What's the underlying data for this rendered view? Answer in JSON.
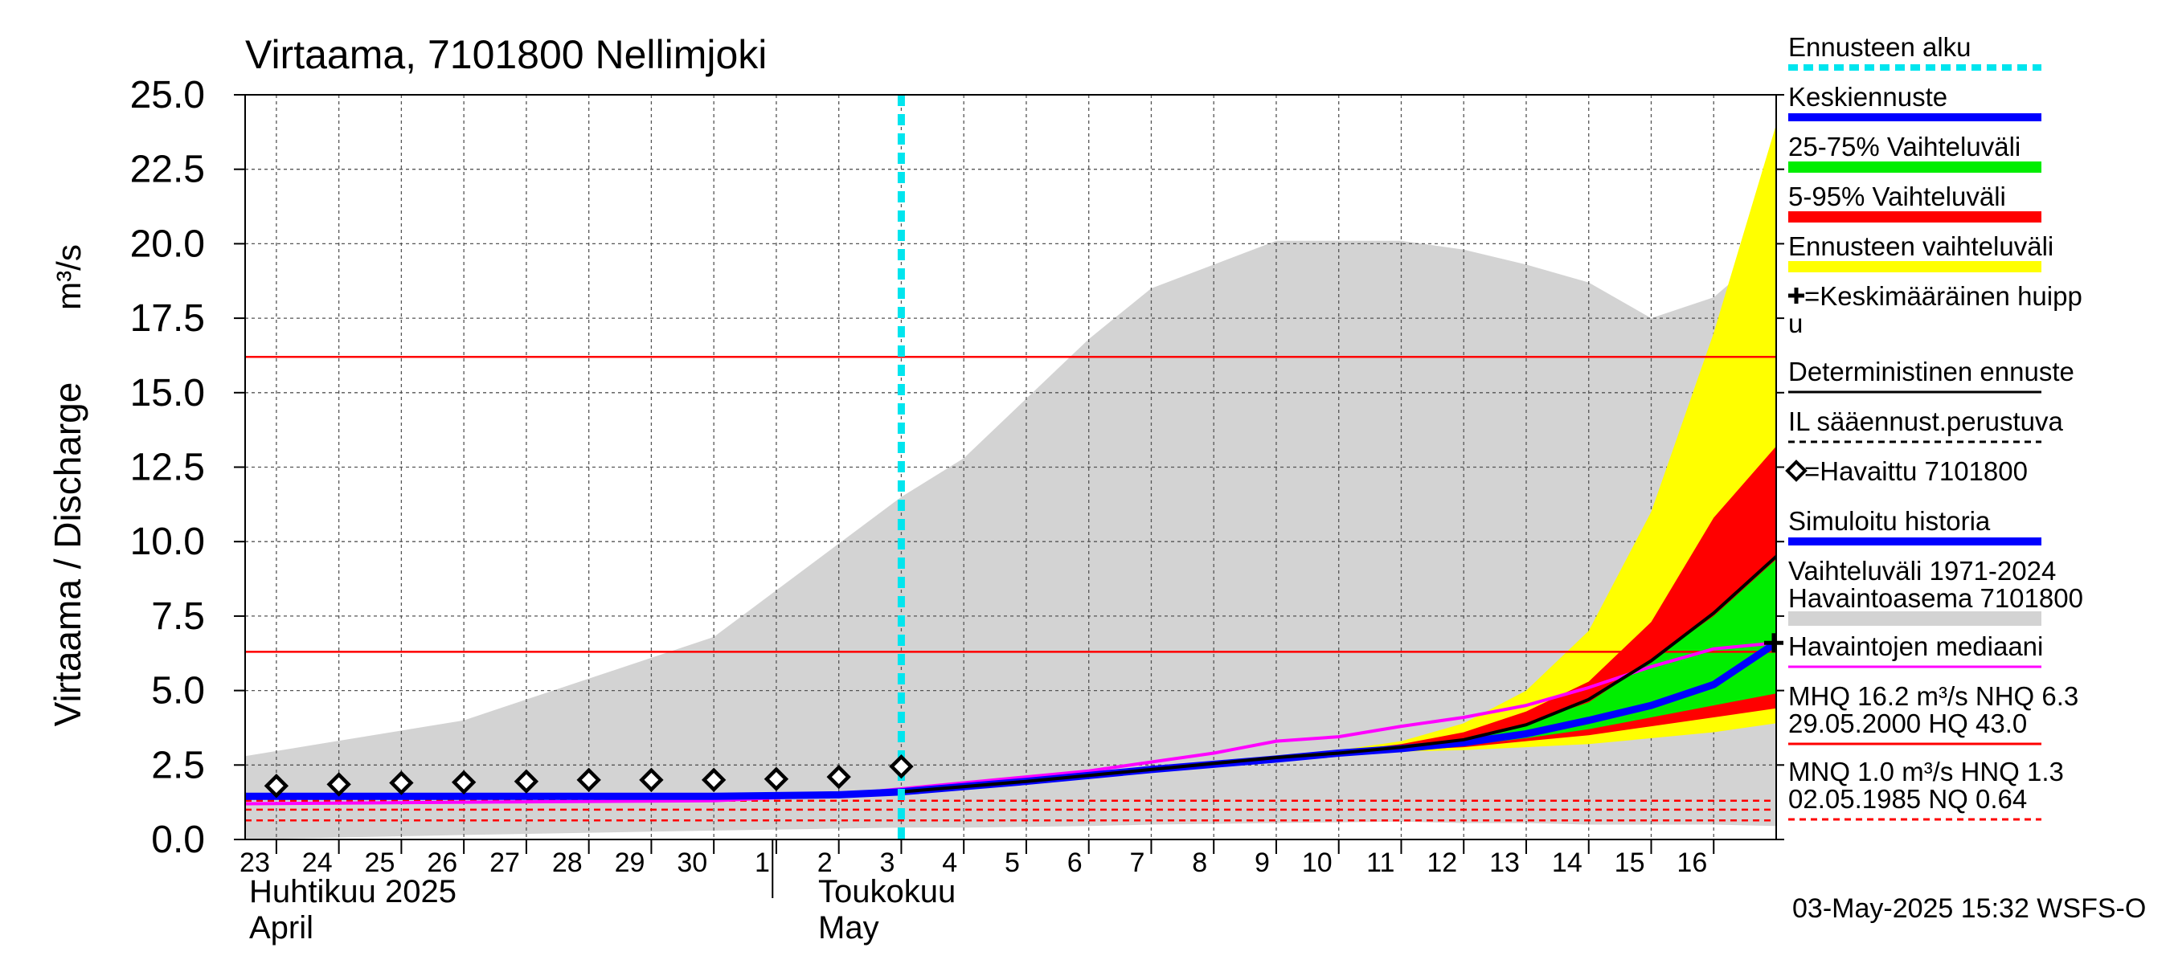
{
  "chart_data": {
    "type": "area",
    "title": "Virtaama, 7101800 Nellimjoki",
    "ylabel": "Virtaama / Discharge",
    "yunit": "m³/s",
    "ylim": [
      0,
      25
    ],
    "yticks": [
      "0.0",
      "2.5",
      "5.0",
      "7.5",
      "10.0",
      "12.5",
      "15.0",
      "17.5",
      "20.0",
      "22.5",
      "25.0"
    ],
    "xlim": [
      "2025-04-22T12:00",
      "2025-05-16T24:00"
    ],
    "x_day_labels": [
      "23",
      "24",
      "25",
      "26",
      "27",
      "28",
      "29",
      "30",
      "1",
      "2",
      "3",
      "4",
      "5",
      "6",
      "7",
      "8",
      "9",
      "10",
      "11",
      "12",
      "13",
      "14",
      "15",
      "16"
    ],
    "month_labels": [
      {
        "fi": "Huhtikuu  2025",
        "en": "April",
        "start": "2025-04-22T12:00"
      },
      {
        "fi": "Toukokuu",
        "en": "May",
        "start": "2025-05-01T00:00"
      }
    ],
    "timestamp": "03-May-2025 15:32 WSFS-O",
    "forecast_start": "2025-05-03T00:00",
    "reference_lines": [
      {
        "name": "MHQ",
        "value": 16.2,
        "style": "solid",
        "color": "#ff0000"
      },
      {
        "name": "NHQ",
        "value": 6.3,
        "style": "solid",
        "color": "#ff0000"
      },
      {
        "name": "MNQ",
        "value": 1.0,
        "style": "dashed",
        "color": "#ff0000"
      },
      {
        "name": "HNQ",
        "value": 1.3,
        "style": "dashed",
        "color": "#ff0000"
      },
      {
        "name": "NQ",
        "value": 0.64,
        "style": "dashed",
        "color": "#ff0000"
      }
    ],
    "historical_range": {
      "name": "Vaihteluväli 1971-2024 Havaintoasema 7101800",
      "color": "#d3d3d3",
      "x": [
        "2025-04-22T12:00",
        "2025-04-26T00:00",
        "2025-04-30T00:00",
        "2025-05-03T00:00",
        "2025-05-04T00:00",
        "2025-05-06T00:00",
        "2025-05-07T00:00",
        "2025-05-09T00:00",
        "2025-05-11T00:00",
        "2025-05-12T00:00",
        "2025-05-13T00:00",
        "2025-05-14T00:00",
        "2025-05-15T00:00",
        "2025-05-16T00:00",
        "2025-05-17T00:00"
      ],
      "upper": [
        2.8,
        4.0,
        6.8,
        11.5,
        12.8,
        16.8,
        18.5,
        20.1,
        20.1,
        19.8,
        19.3,
        18.7,
        17.5,
        18.2,
        20.0
      ],
      "lower": [
        0.0,
        0.15,
        0.3,
        0.4,
        0.4,
        0.45,
        0.5,
        0.55,
        0.6,
        0.55,
        0.55,
        0.5,
        0.5,
        0.5,
        0.45
      ]
    },
    "forecast_x": [
      "2025-05-03T00:00",
      "2025-05-05T00:00",
      "2025-05-07T00:00",
      "2025-05-09T00:00",
      "2025-05-10T00:00",
      "2025-05-11T00:00",
      "2025-05-12T00:00",
      "2025-05-13T00:00",
      "2025-05-14T00:00",
      "2025-05-15T00:00",
      "2025-05-16T00:00",
      "2025-05-17T00:00"
    ],
    "forecast_bands": [
      {
        "name": "Ennusteen vaihteluväli",
        "color": "#ffff00",
        "upper": [
          1.6,
          2.0,
          2.4,
          2.8,
          3.0,
          3.3,
          3.9,
          5.0,
          7.0,
          11.0,
          17.0,
          24.0
        ],
        "lower": [
          1.6,
          1.9,
          2.3,
          2.6,
          2.8,
          2.95,
          3.0,
          3.1,
          3.2,
          3.4,
          3.6,
          3.9
        ]
      },
      {
        "name": "5-95% Vaihteluväli",
        "color": "#ff0000",
        "upper": [
          1.6,
          2.0,
          2.4,
          2.8,
          2.95,
          3.2,
          3.6,
          4.3,
          5.3,
          7.3,
          10.8,
          13.2
        ],
        "lower": [
          1.6,
          1.9,
          2.35,
          2.65,
          2.85,
          3.0,
          3.1,
          3.3,
          3.5,
          3.8,
          4.1,
          4.4
        ]
      },
      {
        "name": "25-75% Vaihteluväli",
        "color": "#00ee00",
        "upper": [
          1.6,
          2.0,
          2.4,
          2.75,
          2.9,
          3.1,
          3.4,
          3.9,
          4.6,
          6.0,
          7.5,
          9.4
        ],
        "lower": [
          1.6,
          1.9,
          2.35,
          2.7,
          2.85,
          3.0,
          3.15,
          3.4,
          3.7,
          4.1,
          4.5,
          4.9
        ]
      }
    ],
    "series": [
      {
        "name": "Havaintojen mediaani",
        "color": "#ff00ff",
        "width": 4,
        "x": [
          "2025-04-22T12:00",
          "2025-04-26T00:00",
          "2025-04-30T00:00",
          "2025-05-02T00:00",
          "2025-05-04T00:00",
          "2025-05-06T00:00",
          "2025-05-08T00:00",
          "2025-05-09T00:00",
          "2025-05-10T00:00",
          "2025-05-11T00:00",
          "2025-05-12T00:00",
          "2025-05-13T00:00",
          "2025-05-14T00:00",
          "2025-05-15T00:00",
          "2025-05-16T00:00",
          "2025-05-17T00:00"
        ],
        "values": [
          1.2,
          1.25,
          1.3,
          1.5,
          1.9,
          2.3,
          2.9,
          3.3,
          3.45,
          3.8,
          4.1,
          4.5,
          5.1,
          5.8,
          6.4,
          6.6
        ]
      },
      {
        "name": "Simuloitu historia",
        "color": "#0000ff",
        "width": 9,
        "x": [
          "2025-04-22T12:00",
          "2025-04-26T00:00",
          "2025-04-30T00:00",
          "2025-05-02T00:00",
          "2025-05-03T00:00"
        ],
        "values": [
          1.45,
          1.45,
          1.45,
          1.5,
          1.6
        ]
      },
      {
        "name": "Keskiennuste",
        "color": "#0000ff",
        "width": 9,
        "x": [
          "2025-05-03T00:00",
          "2025-05-05T00:00",
          "2025-05-07T00:00",
          "2025-05-09T00:00",
          "2025-05-10T00:00",
          "2025-05-11T00:00",
          "2025-05-12T00:00",
          "2025-05-13T00:00",
          "2025-05-14T00:00",
          "2025-05-15T00:00",
          "2025-05-16T00:00",
          "2025-05-17T00:00"
        ],
        "values": [
          1.6,
          1.95,
          2.35,
          2.7,
          2.9,
          3.05,
          3.25,
          3.55,
          4.0,
          4.5,
          5.2,
          6.6
        ]
      },
      {
        "name": "Deterministinen ennuste",
        "color": "#000000",
        "width": 4,
        "x": [
          "2025-05-03T00:00",
          "2025-05-05T00:00",
          "2025-05-07T00:00",
          "2025-05-09T00:00",
          "2025-05-10T00:00",
          "2025-05-11T00:00",
          "2025-05-12T00:00",
          "2025-05-13T00:00",
          "2025-05-14T00:00",
          "2025-05-15T00:00",
          "2025-05-16T00:00",
          "2025-05-17T00:00"
        ],
        "values": [
          1.6,
          1.95,
          2.35,
          2.75,
          2.9,
          3.1,
          3.35,
          3.85,
          4.7,
          6.0,
          7.6,
          9.5
        ]
      }
    ],
    "observed": {
      "name": "Havaittu 7101800",
      "x": [
        "2025-04-23T00:00",
        "2025-04-24T00:00",
        "2025-04-25T00:00",
        "2025-04-26T00:00",
        "2025-04-27T00:00",
        "2025-04-28T00:00",
        "2025-04-29T00:00",
        "2025-04-30T00:00",
        "2025-05-01T00:00",
        "2025-05-02T00:00",
        "2025-05-03T00:00"
      ],
      "values": [
        1.8,
        1.85,
        1.9,
        1.92,
        1.95,
        2.0,
        2.0,
        2.0,
        2.03,
        2.1,
        2.45
      ]
    },
    "mean_peak": {
      "name": "Keskimääräinen huippu",
      "x": "2025-05-17T00:00",
      "value": 6.6
    },
    "legend": {
      "position": "right",
      "items": [
        {
          "label": "Ennusteen alku",
          "swatch": "dashed",
          "color": "#00e5ee"
        },
        {
          "label": "Keskiennuste",
          "swatch": "line",
          "color": "#0000ff"
        },
        {
          "label": "25-75% Vaihteluväli",
          "swatch": "bar",
          "color": "#00ee00"
        },
        {
          "label": "5-95% Vaihteluväli",
          "swatch": "bar",
          "color": "#ff0000"
        },
        {
          "label": "Ennusteen vaihteluväli",
          "swatch": "bar",
          "color": "#ffff00"
        },
        {
          "label": "=Keskimääräinen huipp",
          "label2": "u",
          "swatch": "none",
          "marker": "plus",
          "color": "#000000"
        },
        {
          "label": "Deterministinen ennuste",
          "swatch": "thin",
          "color": "#000000"
        },
        {
          "label": "IL sääennust.perustuva",
          "swatch": "dashed-thin",
          "color": "#000000"
        },
        {
          "label": "=Havaittu 7101800",
          "swatch": "none",
          "marker": "diamond",
          "color": "#000000"
        },
        {
          "label": "Simuloitu historia",
          "swatch": "line",
          "color": "#0000ff"
        },
        {
          "label": "Vaihteluväli 1971-2024",
          "label2": " Havaintoasema 7101800",
          "swatch": "bar",
          "color": "#d3d3d3"
        },
        {
          "label": "Havaintojen mediaani",
          "swatch": "thin",
          "color": "#ff00ff"
        },
        {
          "label": "MHQ 16.2 m³/s NHQ  6.3",
          "label2": "29.05.2000 HQ 43.0",
          "swatch": "thin",
          "color": "#ff0000"
        },
        {
          "label": "MNQ  1.0 m³/s HNQ  1.3",
          "label2": "02.05.1985 NQ 0.64",
          "swatch": "dashed-thin",
          "color": "#ff0000"
        }
      ]
    }
  }
}
